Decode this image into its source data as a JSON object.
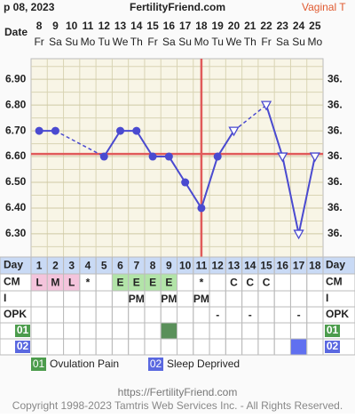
{
  "header": {
    "date": "p 08, 2023",
    "site": "FertilityFriend.com",
    "mode": "Vaginal T"
  },
  "chart_data": {
    "type": "line",
    "dates_label": "Date",
    "dates": [
      8,
      9,
      10,
      11,
      12,
      13,
      14,
      15,
      16,
      17,
      18,
      19,
      20,
      21,
      22,
      23,
      24,
      25
    ],
    "weekdays": [
      "Fr",
      "Sa",
      "Su",
      "Mo",
      "Tu",
      "We",
      "Th",
      "Fr",
      "Sa",
      "Su",
      "Mo",
      "Tu",
      "We",
      "Th",
      "Fr",
      "Sa",
      "Su",
      "Mo"
    ],
    "series": [
      {
        "color": "#4a4ad0",
        "values": [
          6.7,
          6.7,
          null,
          null,
          6.6,
          6.7,
          6.7,
          6.6,
          6.6,
          6.5,
          6.4,
          6.6,
          6.7,
          null,
          6.8,
          6.6,
          6.3,
          6.6
        ],
        "markers": [
          "circle",
          "circle",
          null,
          null,
          "circle",
          "circle",
          "circle",
          "circle",
          "circle",
          "circle",
          "circle",
          "circle",
          "triangle",
          null,
          "triangle",
          "triangle",
          "triangle",
          "triangle"
        ]
      }
    ],
    "ylim": [
      6.21,
      6.98
    ],
    "yticks": [
      {
        "value": 6.9,
        "label": "6.90"
      },
      {
        "value": 6.8,
        "label": "6.80"
      },
      {
        "value": 6.7,
        "label": "6.70"
      },
      {
        "value": 6.6,
        "label": "6.60"
      },
      {
        "value": 6.5,
        "label": "6.50"
      },
      {
        "value": 6.4,
        "label": "6.40"
      },
      {
        "value": 6.3,
        "label": "6.30"
      }
    ],
    "minor_yticks": [
      6.95,
      6.85,
      6.75,
      6.65,
      6.55,
      6.45,
      6.35,
      6.25
    ],
    "y2_labels": [
      "36.",
      "36.",
      "36.",
      "36.",
      "36.",
      "36.",
      "36."
    ],
    "grid": true,
    "coverline": 6.61,
    "ovulation_day": 11,
    "marker_line_color": "#e05a5a"
  },
  "table": {
    "rows": [
      {
        "label": "Day",
        "fill": "#c9daf5",
        "cells": [
          1,
          2,
          3,
          4,
          5,
          6,
          7,
          8,
          9,
          10,
          11,
          12,
          13,
          14,
          15,
          16,
          17,
          18
        ]
      },
      {
        "label": "CM",
        "cells": [
          "L",
          "M",
          "L",
          "*",
          null,
          "E",
          "E",
          "E",
          "E",
          null,
          "*",
          null,
          "C",
          "C",
          "C",
          null,
          null,
          null
        ],
        "fills": [
          "#f4c4dc",
          "#f4c4dc",
          "#f4c4dc",
          null,
          null,
          "#b2e4a8",
          "#b2e4a8",
          "#b2e4a8",
          "#b2e4a8",
          null,
          null,
          null,
          null,
          null,
          null,
          null,
          null,
          null
        ]
      },
      {
        "label": "I",
        "cells": [
          null,
          null,
          null,
          null,
          null,
          null,
          "PM",
          null,
          "PM",
          null,
          "PM",
          null,
          null,
          null,
          null,
          null,
          null,
          null
        ]
      },
      {
        "label": "OPK",
        "cells": [
          null,
          null,
          null,
          null,
          null,
          null,
          null,
          null,
          null,
          null,
          null,
          "-",
          null,
          "-",
          null,
          null,
          "-",
          null
        ]
      },
      {
        "label": "01",
        "label_fill": "#4c9c4c",
        "fills": [
          null,
          null,
          null,
          null,
          null,
          null,
          null,
          null,
          "#5a905a",
          null,
          null,
          null,
          null,
          null,
          null,
          null,
          null,
          null
        ]
      },
      {
        "label": "02",
        "label_fill": "#5a68e0",
        "fills": [
          null,
          null,
          null,
          null,
          null,
          null,
          null,
          null,
          null,
          null,
          null,
          null,
          null,
          null,
          null,
          null,
          "#6070f0",
          null
        ]
      }
    ]
  },
  "legend": [
    {
      "code": "01",
      "text": "Ovulation Pain",
      "color": "#4c9c4c"
    },
    {
      "code": "02",
      "text": "Sleep Deprived",
      "color": "#5a68e0"
    }
  ],
  "footer": {
    "url": "https://FertilityFriend.com",
    "copyright": "Copyright 1998-2023 Tamtris Web Services Inc. - All Rights Reserved."
  }
}
